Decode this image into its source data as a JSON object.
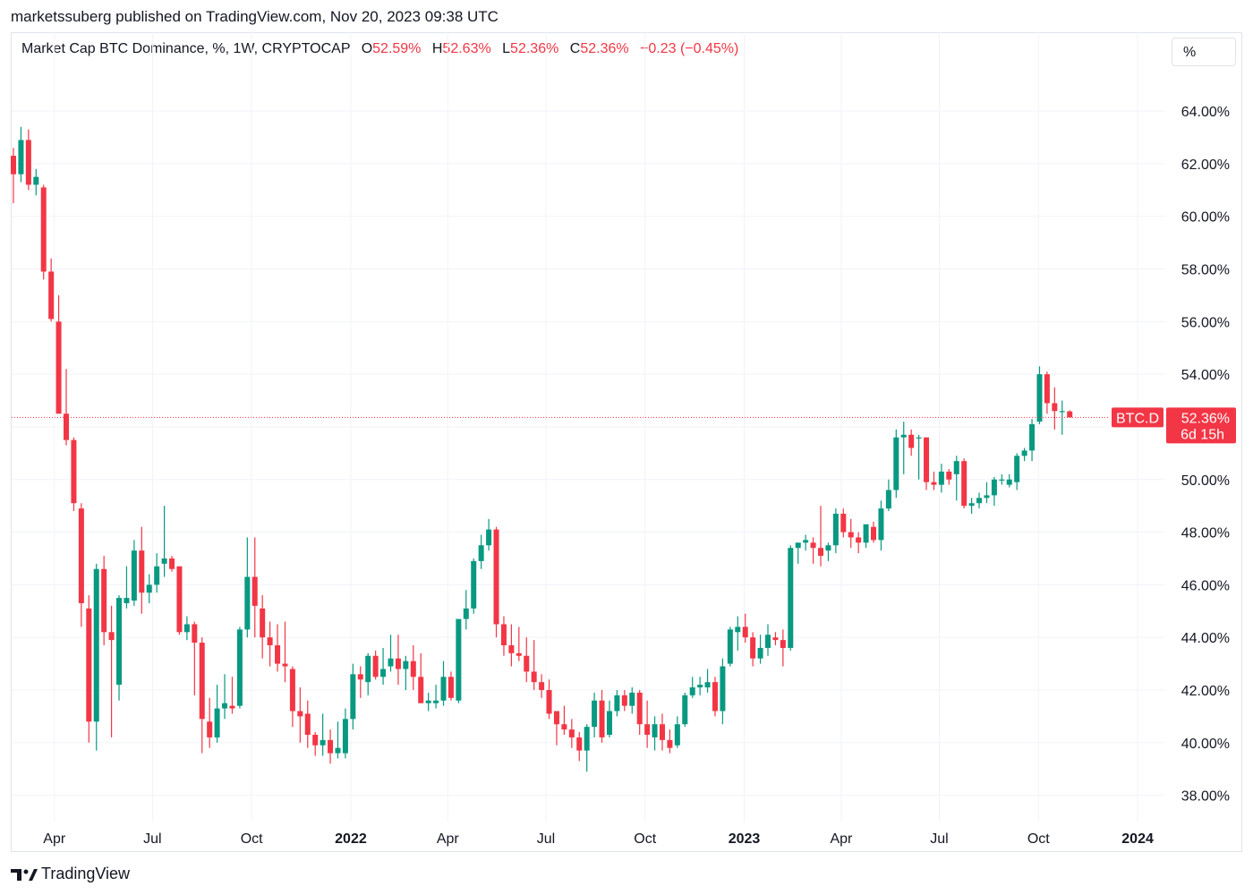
{
  "published": "marketssuberg published on TradingView.com, Nov 20, 2023 09:38 UTC",
  "legend": {
    "name": "Market Cap BTC Dominance, %, 1W, CRYPTOCAP",
    "o_label": "O",
    "o": "52.59%",
    "h_label": "H",
    "h": "52.63%",
    "l_label": "L",
    "l": "52.36%",
    "c_label": "C",
    "c": "52.36%",
    "change": "−0.23 (−0.45%)"
  },
  "scale_button": "%",
  "footer": {
    "brand": "TradingView"
  },
  "colors": {
    "up": "#089981",
    "down": "#f23645",
    "grid": "#f0f3fa",
    "text": "#131722"
  },
  "chart_data": {
    "type": "candlestick",
    "y_unit": "%",
    "ylim": [
      37.0,
      65.5
    ],
    "y_ticks": [
      64,
      62,
      60,
      58,
      56,
      54,
      52,
      50,
      48,
      46,
      44,
      42,
      40,
      38
    ],
    "y_tick_labels": [
      "64.00%",
      "62.00%",
      "60.00%",
      "58.00%",
      "56.00%",
      "54.00%",
      "52.00%",
      "50.00%",
      "48.00%",
      "46.00%",
      "44.00%",
      "42.00%",
      "40.00%",
      "38.00%"
    ],
    "x_ticks": [
      {
        "label": "Apr",
        "date": "2021-04-01",
        "bold": false
      },
      {
        "label": "Jul",
        "date": "2021-07-01",
        "bold": false
      },
      {
        "label": "Oct",
        "date": "2021-10-01",
        "bold": false
      },
      {
        "label": "2022",
        "date": "2022-01-01",
        "bold": true
      },
      {
        "label": "Apr",
        "date": "2022-04-01",
        "bold": false
      },
      {
        "label": "Jul",
        "date": "2022-07-01",
        "bold": false
      },
      {
        "label": "Oct",
        "date": "2022-10-01",
        "bold": false
      },
      {
        "label": "2023",
        "date": "2023-01-01",
        "bold": true
      },
      {
        "label": "Apr",
        "date": "2023-04-01",
        "bold": false
      },
      {
        "label": "Jul",
        "date": "2023-07-01",
        "bold": false
      },
      {
        "label": "Oct",
        "date": "2023-10-01",
        "bold": false
      },
      {
        "label": "2024",
        "date": "2024-01-01",
        "bold": true
      }
    ],
    "first_candle_date": "2021-02-22",
    "interval_days": 7,
    "last_price": 52.36,
    "last_price_tag": "BTC.D",
    "last_price_label": "52.36%",
    "countdown": "6d 15h",
    "candles": [
      [
        62.3,
        62.6,
        60.5,
        61.6
      ],
      [
        61.6,
        63.4,
        61.3,
        62.9
      ],
      [
        62.9,
        63.3,
        61.0,
        61.2
      ],
      [
        61.2,
        61.8,
        60.8,
        61.5
      ],
      [
        61.1,
        61.2,
        57.6,
        57.9
      ],
      [
        57.9,
        58.4,
        56.0,
        56.1
      ],
      [
        56.0,
        57.0,
        52.6,
        52.5
      ],
      [
        52.5,
        54.2,
        51.3,
        51.5
      ],
      [
        51.5,
        51.6,
        48.8,
        49.1
      ],
      [
        48.9,
        49.1,
        44.4,
        45.3
      ],
      [
        45.1,
        45.6,
        40.0,
        40.8
      ],
      [
        40.8,
        46.8,
        39.7,
        46.6
      ],
      [
        46.6,
        47.1,
        43.7,
        44.2
      ],
      [
        44.2,
        45.2,
        40.2,
        43.9
      ],
      [
        42.2,
        45.6,
        41.6,
        45.5
      ],
      [
        45.3,
        46.7,
        45.1,
        45.5
      ],
      [
        45.4,
        47.7,
        45.2,
        47.3
      ],
      [
        47.3,
        48.2,
        44.9,
        45.7
      ],
      [
        45.7,
        46.4,
        45.3,
        46.0
      ],
      [
        46.0,
        47.2,
        45.7,
        46.7
      ],
      [
        46.8,
        49.0,
        46.3,
        47.0
      ],
      [
        47.0,
        47.1,
        46.5,
        46.6
      ],
      [
        46.7,
        46.7,
        44.1,
        44.2
      ],
      [
        44.2,
        44.8,
        43.9,
        44.5
      ],
      [
        44.5,
        44.6,
        41.8,
        43.8
      ],
      [
        43.8,
        44.0,
        39.6,
        40.9
      ],
      [
        40.8,
        41.7,
        39.8,
        40.2
      ],
      [
        40.2,
        42.2,
        40.0,
        41.3
      ],
      [
        41.3,
        42.6,
        40.9,
        41.5
      ],
      [
        41.4,
        42.5,
        41.1,
        41.3
      ],
      [
        41.4,
        44.4,
        41.3,
        44.3
      ],
      [
        44.3,
        47.8,
        44.0,
        46.3
      ],
      [
        46.3,
        47.8,
        44.0,
        45.2
      ],
      [
        45.1,
        45.6,
        43.2,
        44.0
      ],
      [
        44.0,
        44.6,
        42.9,
        43.7
      ],
      [
        43.7,
        44.5,
        42.7,
        43.0
      ],
      [
        43.0,
        44.6,
        42.3,
        42.9
      ],
      [
        42.8,
        42.9,
        40.6,
        41.2
      ],
      [
        41.2,
        42.1,
        40.0,
        41.0
      ],
      [
        41.1,
        41.6,
        39.8,
        40.3
      ],
      [
        40.3,
        40.4,
        39.5,
        39.9
      ],
      [
        39.9,
        41.1,
        39.5,
        40.1
      ],
      [
        40.1,
        40.5,
        39.2,
        39.6
      ],
      [
        39.6,
        40.8,
        39.4,
        39.8
      ],
      [
        39.6,
        41.3,
        39.4,
        40.9
      ],
      [
        40.9,
        43.0,
        40.5,
        42.6
      ],
      [
        42.6,
        42.9,
        41.7,
        42.4
      ],
      [
        42.3,
        43.4,
        41.8,
        43.3
      ],
      [
        43.3,
        43.5,
        42.4,
        42.5
      ],
      [
        42.5,
        43.6,
        42.2,
        42.8
      ],
      [
        42.9,
        44.1,
        42.7,
        43.2
      ],
      [
        43.2,
        44.1,
        42.2,
        42.8
      ],
      [
        42.8,
        43.3,
        42.0,
        43.1
      ],
      [
        43.1,
        43.7,
        42.0,
        42.5
      ],
      [
        42.5,
        43.4,
        41.5,
        41.5
      ],
      [
        41.5,
        41.9,
        41.2,
        41.6
      ],
      [
        41.5,
        42.2,
        41.3,
        41.6
      ],
      [
        41.6,
        43.1,
        41.4,
        42.5
      ],
      [
        42.5,
        42.7,
        41.6,
        41.7
      ],
      [
        41.6,
        44.5,
        41.5,
        44.7
      ],
      [
        44.7,
        45.8,
        44.3,
        45.1
      ],
      [
        45.1,
        47.0,
        44.9,
        46.9
      ],
      [
        46.9,
        47.9,
        46.6,
        47.5
      ],
      [
        47.5,
        48.5,
        47.3,
        48.1
      ],
      [
        48.1,
        48.2,
        44.0,
        44.5
      ],
      [
        44.5,
        44.8,
        43.3,
        43.7
      ],
      [
        43.7,
        44.5,
        42.9,
        43.4
      ],
      [
        43.4,
        44.4,
        43.1,
        43.3
      ],
      [
        43.3,
        44.0,
        42.3,
        42.7
      ],
      [
        42.7,
        43.9,
        42.0,
        42.3
      ],
      [
        42.3,
        42.6,
        41.7,
        42.0
      ],
      [
        42.0,
        42.4,
        40.9,
        41.1
      ],
      [
        41.2,
        41.2,
        39.9,
        40.7
      ],
      [
        40.7,
        41.4,
        40.3,
        40.5
      ],
      [
        40.5,
        40.9,
        39.8,
        40.2
      ],
      [
        40.2,
        40.4,
        39.3,
        39.7
      ],
      [
        39.7,
        40.7,
        38.9,
        40.6
      ],
      [
        40.6,
        41.9,
        40.2,
        41.6
      ],
      [
        41.6,
        42.0,
        40.0,
        40.2
      ],
      [
        40.3,
        41.6,
        40.2,
        41.2
      ],
      [
        41.2,
        42.0,
        41.0,
        41.8
      ],
      [
        41.8,
        42.0,
        41.2,
        41.4
      ],
      [
        41.4,
        42.1,
        41.1,
        41.9
      ],
      [
        41.9,
        42.0,
        40.3,
        40.7
      ],
      [
        40.7,
        41.6,
        39.8,
        40.3
      ],
      [
        40.2,
        41.0,
        39.7,
        40.7
      ],
      [
        40.7,
        41.1,
        39.7,
        40.1
      ],
      [
        40.1,
        40.5,
        39.6,
        39.8
      ],
      [
        39.9,
        41.0,
        39.8,
        40.7
      ],
      [
        40.7,
        41.9,
        40.6,
        41.8
      ],
      [
        41.8,
        42.5,
        41.7,
        42.1
      ],
      [
        42.1,
        42.5,
        41.8,
        42.2
      ],
      [
        42.1,
        42.8,
        41.9,
        42.3
      ],
      [
        42.3,
        42.5,
        41.0,
        41.2
      ],
      [
        41.2,
        43.2,
        40.7,
        42.9
      ],
      [
        43.0,
        44.4,
        42.9,
        44.3
      ],
      [
        44.2,
        44.8,
        43.5,
        44.4
      ],
      [
        44.4,
        44.9,
        43.8,
        44.0
      ],
      [
        44.0,
        44.2,
        42.9,
        43.2
      ],
      [
        43.2,
        44.1,
        43.0,
        43.6
      ],
      [
        43.6,
        44.5,
        43.3,
        44.1
      ],
      [
        44.0,
        44.2,
        43.7,
        43.9
      ],
      [
        43.9,
        44.3,
        42.9,
        43.6
      ],
      [
        43.6,
        47.5,
        43.5,
        47.4
      ],
      [
        47.4,
        47.6,
        46.8,
        47.6
      ],
      [
        47.6,
        47.9,
        47.3,
        47.7
      ],
      [
        47.6,
        47.8,
        46.8,
        47.4
      ],
      [
        47.4,
        49.0,
        46.7,
        47.1
      ],
      [
        47.3,
        47.6,
        46.9,
        47.5
      ],
      [
        47.5,
        48.9,
        47.2,
        48.7
      ],
      [
        48.7,
        48.9,
        47.8,
        48.0
      ],
      [
        48.0,
        48.5,
        47.4,
        47.8
      ],
      [
        47.8,
        48.0,
        47.2,
        47.6
      ],
      [
        47.6,
        48.2,
        47.4,
        48.3
      ],
      [
        48.2,
        48.4,
        47.6,
        47.7
      ],
      [
        47.7,
        49.2,
        47.3,
        48.9
      ],
      [
        48.9,
        50.0,
        48.8,
        49.6
      ],
      [
        49.6,
        51.9,
        49.3,
        51.6
      ],
      [
        51.6,
        52.2,
        50.2,
        51.7
      ],
      [
        51.7,
        51.9,
        50.9,
        51.2
      ],
      [
        51.6,
        51.7,
        50.0,
        51.6
      ],
      [
        51.6,
        51.6,
        49.6,
        49.9
      ],
      [
        49.9,
        50.3,
        49.6,
        49.8
      ],
      [
        49.8,
        50.6,
        49.5,
        50.3
      ],
      [
        50.3,
        50.4,
        49.8,
        50.0
      ],
      [
        50.2,
        50.9,
        49.2,
        50.7
      ],
      [
        50.7,
        50.8,
        48.9,
        49.0
      ],
      [
        49.0,
        49.3,
        48.7,
        49.1
      ],
      [
        49.1,
        49.5,
        48.9,
        49.3
      ],
      [
        49.3,
        49.9,
        49.1,
        49.4
      ],
      [
        49.4,
        50.1,
        49.0,
        50.0
      ],
      [
        50.0,
        50.2,
        49.8,
        50.0
      ],
      [
        49.8,
        50.2,
        49.7,
        50.0
      ],
      [
        49.9,
        51.0,
        49.6,
        50.9
      ],
      [
        50.9,
        51.2,
        50.7,
        51.1
      ],
      [
        51.1,
        52.3,
        50.7,
        52.1
      ],
      [
        52.2,
        54.3,
        52.1,
        54.0
      ],
      [
        54.0,
        54.1,
        52.5,
        52.9
      ],
      [
        52.9,
        53.5,
        51.9,
        52.6
      ],
      [
        52.6,
        53.0,
        51.7,
        52.6
      ],
      [
        52.59,
        52.63,
        52.36,
        52.36
      ]
    ]
  }
}
